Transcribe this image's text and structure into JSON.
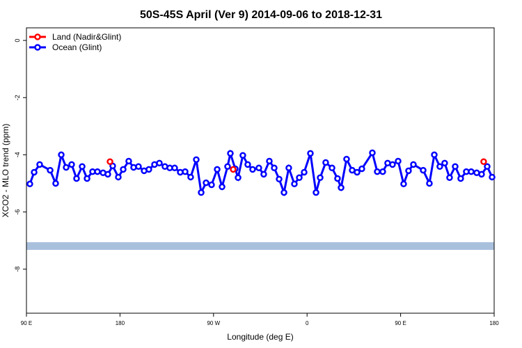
{
  "chart_data": {
    "type": "line",
    "title": "50S-45S April (Ver 9)   2014-09-06 to 2018-12-31",
    "x_label": "Longitude (deg E)",
    "y_label": "XCO2 - MLO trend (ppm)",
    "xlim": [
      90,
      540
    ],
    "ylim": [
      -9.54,
      0.44
    ],
    "xticks": [
      {
        "value": 90,
        "label": "90 E"
      },
      {
        "value": 180,
        "label": "180"
      },
      {
        "value": 270,
        "label": "90 W"
      },
      {
        "value": 360,
        "label": "0"
      },
      {
        "value": 450,
        "label": "90 E"
      },
      {
        "value": 540,
        "label": "180"
      }
    ],
    "yticks": [
      0,
      -2,
      -4,
      -6,
      -8
    ],
    "legend": "top-left",
    "series": [
      {
        "name": "Land (Nadir&Glint)",
        "color": "#ff0000",
        "markers_only": true,
        "x": [
          170.4,
          288.9,
          529.9
        ],
        "values": [
          -4.24,
          -4.51,
          -4.24
        ]
      },
      {
        "name": "Ocean (Glint)",
        "color": "#0000ff",
        "x": [
          93.3,
          97.4,
          102.7,
          112.8,
          118.1,
          123.5,
          128.2,
          133.5,
          138.2,
          143.6,
          148.3,
          153.6,
          158.3,
          163.7,
          168.3,
          173.0,
          178.4,
          183.1,
          188.4,
          193.1,
          197.8,
          203.2,
          207.8,
          213.2,
          217.9,
          223.2,
          227.9,
          232.6,
          238.0,
          242.7,
          248.0,
          253.4,
          258.1,
          262.8,
          268.1,
          273.5,
          278.2,
          283.5,
          286.2,
          290.9,
          293.6,
          298.2,
          302.9,
          307.6,
          313.6,
          318.3,
          323.7,
          328.4,
          333.1,
          337.8,
          342.4,
          347.8,
          352.5,
          357.2,
          363.2,
          368.6,
          372.6,
          377.9,
          384.0,
          389.3,
          392.7,
          398.0,
          403.4,
          408.1,
          412.7,
          422.8,
          427.5,
          432.8,
          437.5,
          442.2,
          447.6,
          452.9,
          457.6,
          462.3,
          471.7,
          477.7,
          482.4,
          487.7,
          492.4,
          497.1,
          502.5,
          507.8,
          513.2,
          517.9,
          523.2,
          527.9,
          533.3,
          538.0
        ],
        "values": [
          -5.02,
          -4.61,
          -4.34,
          -4.54,
          -5.0,
          -4.0,
          -4.44,
          -4.34,
          -4.83,
          -4.41,
          -4.83,
          -4.59,
          -4.59,
          -4.63,
          -4.68,
          -4.39,
          -4.78,
          -4.51,
          -4.22,
          -4.44,
          -4.41,
          -4.56,
          -4.51,
          -4.34,
          -4.29,
          -4.41,
          -4.46,
          -4.46,
          -4.61,
          -4.59,
          -4.78,
          -4.17,
          -5.32,
          -4.98,
          -5.05,
          -4.51,
          -5.12,
          -4.41,
          -3.95,
          -4.49,
          -4.8,
          -4.02,
          -4.34,
          -4.51,
          -4.46,
          -4.68,
          -4.22,
          -4.46,
          -4.85,
          -5.32,
          -4.46,
          -5.02,
          -4.8,
          -4.61,
          -3.95,
          -5.32,
          -4.8,
          -4.27,
          -4.46,
          -4.83,
          -5.15,
          -4.15,
          -4.54,
          -4.61,
          -4.49,
          -3.93,
          -4.59,
          -4.59,
          -4.29,
          -4.34,
          -4.22,
          -5.02,
          -4.56,
          -4.34,
          -4.54,
          -5.0,
          -4.0,
          -4.41,
          -4.29,
          -4.8,
          -4.41,
          -4.83,
          -4.59,
          -4.59,
          -4.63,
          -4.68,
          -4.41,
          -4.78
        ]
      }
    ]
  }
}
